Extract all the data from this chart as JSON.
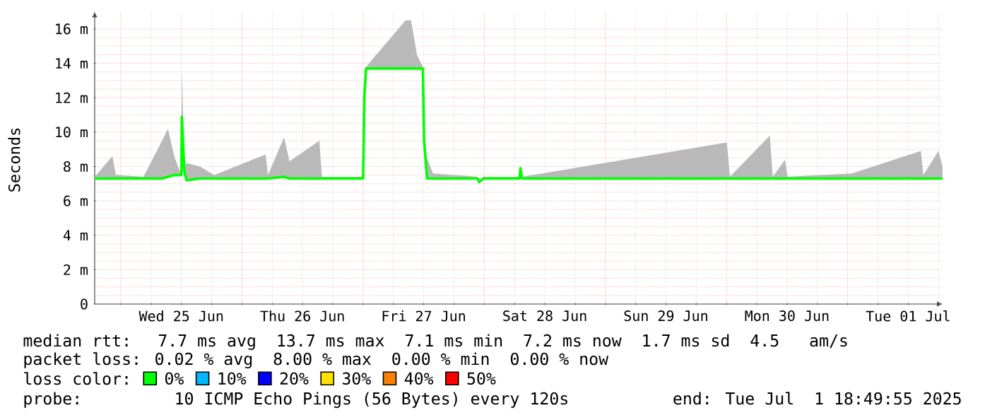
{
  "chart_data": {
    "type": "line",
    "ylabel": "Seconds",
    "legend_title": "loss color:",
    "legend": "bottom",
    "grid": true,
    "xlim": [
      "2025-06-24T18:49",
      "2025-07-01T18:49"
    ],
    "xticks": [
      {
        "value": "2025-06-25T00:00",
        "label": null
      },
      {
        "value": "2025-06-25T06:00",
        "label": null
      },
      {
        "value": "2025-06-25T12:00",
        "label": "Wed 25 Jun"
      },
      {
        "value": "2025-06-25T18:00",
        "label": null
      },
      {
        "value": "2025-06-26T00:00",
        "label": null
      },
      {
        "value": "2025-06-26T06:00",
        "label": null
      },
      {
        "value": "2025-06-26T12:00",
        "label": "Thu 26 Jun"
      },
      {
        "value": "2025-06-26T18:00",
        "label": null
      },
      {
        "value": "2025-06-27T00:00",
        "label": null
      },
      {
        "value": "2025-06-27T06:00",
        "label": null
      },
      {
        "value": "2025-06-27T12:00",
        "label": "Fri 27 Jun"
      },
      {
        "value": "2025-06-27T18:00",
        "label": null
      },
      {
        "value": "2025-06-28T00:00",
        "label": null
      },
      {
        "value": "2025-06-28T06:00",
        "label": null
      },
      {
        "value": "2025-06-28T12:00",
        "label": "Sat 28 Jun"
      },
      {
        "value": "2025-06-28T18:00",
        "label": null
      },
      {
        "value": "2025-06-29T00:00",
        "label": null
      },
      {
        "value": "2025-06-29T06:00",
        "label": null
      },
      {
        "value": "2025-06-29T12:00",
        "label": "Sun 29 Jun"
      },
      {
        "value": "2025-06-29T18:00",
        "label": null
      },
      {
        "value": "2025-06-30T00:00",
        "label": null
      },
      {
        "value": "2025-06-30T06:00",
        "label": null
      },
      {
        "value": "2025-06-30T12:00",
        "label": "Mon 30 Jun"
      },
      {
        "value": "2025-06-30T18:00",
        "label": null
      },
      {
        "value": "2025-07-01T00:00",
        "label": null
      },
      {
        "value": "2025-07-01T06:00",
        "label": null
      },
      {
        "value": "2025-07-01T12:00",
        "label": "Tue 01 Jul"
      },
      {
        "value": "2025-07-01T18:00",
        "label": null
      }
    ],
    "ylim": [
      0,
      17
    ],
    "yticks": [
      0,
      {
        "value": 2,
        "label": "2 m"
      },
      {
        "value": 4,
        "label": "4 m"
      },
      {
        "value": 6,
        "label": "6 m"
      },
      {
        "value": 8,
        "label": "8 m"
      },
      {
        "value": 10,
        "label": "10 m"
      },
      {
        "value": 12,
        "label": "12 m"
      },
      {
        "value": 14,
        "label": "14 m"
      },
      {
        "value": 16,
        "label": "16 m"
      }
    ],
    "x": [
      "2025-06-24T18:50",
      "2025-06-24T22:20",
      "2025-06-24T23:00",
      "2025-06-25T04:30",
      "2025-06-25T08:10",
      "2025-06-25T09:20",
      "2025-06-25T10:40",
      "2025-06-25T12:00",
      "2025-06-25T12:05",
      "2025-06-25T12:35",
      "2025-06-25T13:00",
      "2025-06-25T15:40",
      "2025-06-25T18:30",
      "2025-06-26T04:40",
      "2025-06-26T05:10",
      "2025-06-26T08:20",
      "2025-06-26T09:25",
      "2025-06-26T15:20",
      "2025-06-26T15:50",
      "2025-06-27T00:00",
      "2025-06-27T00:15",
      "2025-06-27T00:35",
      "2025-06-27T08:25",
      "2025-06-27T09:30",
      "2025-06-27T10:40",
      "2025-06-27T11:50",
      "2025-06-27T12:05",
      "2025-06-27T12:40",
      "2025-06-27T13:50",
      "2025-06-27T22:40",
      "2025-06-27T23:00",
      "2025-06-27T23:50",
      "2025-06-28T07:00",
      "2025-06-28T07:10",
      "2025-06-28T07:30",
      "2025-06-30T00:05",
      "2025-06-30T00:40",
      "2025-06-30T08:35",
      "2025-06-30T09:10",
      "2025-06-30T11:35",
      "2025-06-30T12:05",
      "2025-07-01T00:50",
      "2025-07-01T14:30",
      "2025-07-01T15:00",
      "2025-07-01T18:00",
      "2025-07-01T18:49"
    ],
    "series": [
      {
        "name": "0%",
        "color": "#00ff00",
        "values": [
          7.3,
          7.3,
          7.3,
          7.3,
          7.3,
          7.4,
          7.5,
          7.5,
          10.9,
          7.7,
          7.2,
          7.3,
          7.3,
          7.3,
          7.3,
          7.4,
          7.3,
          7.3,
          7.3,
          7.3,
          12.1,
          13.7,
          13.7,
          13.7,
          13.7,
          13.7,
          9.5,
          7.3,
          7.3,
          7.3,
          7.1,
          7.3,
          7.3,
          7.9,
          7.3,
          7.3,
          7.3,
          7.3,
          7.3,
          7.3,
          7.3,
          7.3,
          7.3,
          7.3,
          7.3,
          7.3
        ],
        "lower": [
          7.3,
          7.3,
          7.3,
          7.3,
          7.3,
          7.4,
          7.5,
          7.5,
          10.9,
          7.7,
          7.2,
          7.3,
          7.3,
          7.3,
          7.3,
          7.4,
          7.3,
          7.3,
          7.3,
          7.3,
          12.1,
          13.7,
          13.7,
          13.7,
          13.7,
          13.7,
          9.5,
          7.3,
          7.3,
          7.3,
          7.1,
          7.3,
          7.3,
          7.9,
          7.3,
          7.3,
          7.3,
          7.3,
          7.3,
          7.3,
          7.3,
          7.3,
          7.3,
          7.3,
          7.3,
          7.3
        ],
        "upper": [
          7.4,
          8.6,
          7.5,
          7.4,
          9.5,
          10.2,
          8.5,
          7.5,
          13.8,
          8.0,
          8.2,
          8.0,
          7.5,
          8.7,
          7.5,
          9.7,
          8.3,
          9.5,
          7.4,
          7.4,
          12.1,
          13.8,
          16.5,
          16.5,
          14.5,
          13.8,
          9.5,
          8.5,
          7.6,
          7.4,
          7.1,
          7.4,
          7.4,
          7.9,
          7.4,
          9.4,
          7.4,
          9.8,
          7.4,
          8.4,
          7.4,
          7.6,
          8.9,
          7.5,
          8.9,
          8.0
        ]
      },
      {
        "name": "10%",
        "color": "#00b8ff",
        "values": [
          null,
          null,
          null,
          null,
          null,
          null,
          null,
          null,
          null,
          null,
          null,
          null,
          null,
          null,
          null,
          null,
          null,
          null,
          null,
          null,
          null,
          null,
          null,
          null,
          null,
          null,
          null,
          null,
          null,
          null,
          null,
          null,
          null,
          null,
          null,
          null,
          null,
          null,
          null,
          null,
          null,
          null,
          null,
          null,
          null,
          null
        ]
      },
      {
        "name": "20%",
        "color": "#0000ff",
        "values": [
          null,
          null,
          null,
          null,
          null,
          null,
          null,
          null,
          null,
          null,
          null,
          null,
          null,
          null,
          null,
          null,
          null,
          null,
          null,
          null,
          null,
          null,
          null,
          null,
          null,
          null,
          null,
          null,
          null,
          null,
          null,
          null,
          null,
          null,
          null,
          null,
          null,
          null,
          null,
          null,
          null,
          null,
          null,
          null,
          null,
          null
        ]
      },
      {
        "name": "30%",
        "color": "#ffe000",
        "values": [
          null,
          null,
          null,
          null,
          null,
          null,
          null,
          null,
          null,
          null,
          null,
          null,
          null,
          null,
          null,
          null,
          null,
          null,
          null,
          null,
          null,
          null,
          null,
          null,
          null,
          null,
          null,
          null,
          null,
          null,
          null,
          null,
          null,
          null,
          null,
          null,
          null,
          null,
          null,
          null,
          null,
          null,
          null,
          null,
          null,
          null
        ]
      },
      {
        "name": "40%",
        "color": "#ff8000",
        "values": [
          null,
          null,
          null,
          null,
          null,
          null,
          null,
          null,
          null,
          null,
          null,
          null,
          null,
          null,
          null,
          null,
          null,
          null,
          null,
          null,
          null,
          null,
          null,
          null,
          null,
          null,
          null,
          null,
          null,
          null,
          null,
          null,
          null,
          null,
          null,
          null,
          null,
          null,
          null,
          null,
          null,
          null,
          null,
          null,
          null,
          null
        ]
      },
      {
        "name": "50%",
        "color": "#ff0000",
        "values": [
          null,
          null,
          null,
          null,
          null,
          null,
          null,
          null,
          null,
          null,
          null,
          null,
          null,
          null,
          null,
          null,
          null,
          null,
          null,
          null,
          null,
          null,
          null,
          null,
          null,
          null,
          null,
          null,
          null,
          null,
          null,
          null,
          null,
          null,
          null,
          null,
          null,
          null,
          null,
          null,
          null,
          null,
          null,
          null,
          null,
          null
        ]
      }
    ],
    "annotations": [
      "median rtt:  7.7 ms avg  13.7 ms max  7.1 ms min  7.2 ms now  1.7 ms sd  4.5   am/s",
      "packet loss: 0.02 % avg  8.00 % max  0.00 % min  0.00 % now",
      "probe:       10 ICMP Echo Pings (56 Bytes) every 120s",
      "end: Tue Jul  1 18:49:55 2025"
    ]
  }
}
